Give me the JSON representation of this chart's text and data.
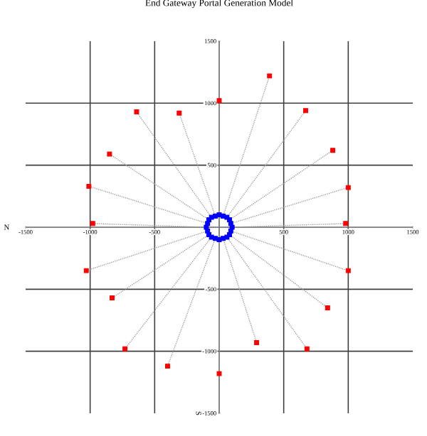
{
  "chart_data": {
    "type": "scatter",
    "title": "End Gateway Portal Generation Model",
    "xlabel": "N",
    "ylabel": "S",
    "xlim": [
      -1500,
      1500
    ],
    "ylim": [
      -1500,
      1500
    ],
    "xticks": [
      -1500,
      -1000,
      -500,
      {
        "value": 0,
        "label": null
      },
      500,
      1000,
      1500
    ],
    "yticks": [
      -1500,
      -1000,
      -500,
      500,
      1000,
      1500
    ],
    "grid": true,
    "series": [
      {
        "type": "line",
        "color": "#999999",
        "line_style": "dotted",
        "marker": "none",
        "x": [
          100,
          980
        ],
        "values": [
          0,
          30
        ]
      },
      {
        "type": "line",
        "color": "#999999",
        "line_style": "dotted",
        "marker": "none",
        "x": [
          90,
          1000
        ],
        "values": [
          30,
          320
        ]
      },
      {
        "type": "line",
        "color": "#999999",
        "line_style": "dotted",
        "marker": "none",
        "x": [
          80,
          880
        ],
        "values": [
          60,
          620
        ]
      },
      {
        "type": "line",
        "color": "#999999",
        "line_style": "dotted",
        "marker": "none",
        "x": [
          60,
          670
        ],
        "values": [
          80,
          940
        ]
      },
      {
        "type": "line",
        "color": "#999999",
        "line_style": "dotted",
        "marker": "none",
        "x": [
          30,
          390
        ],
        "values": [
          90,
          1220
        ]
      },
      {
        "type": "line",
        "color": "#999999",
        "line_style": "dotted",
        "marker": "none",
        "x": [
          0,
          0
        ],
        "values": [
          100,
          1020
        ]
      },
      {
        "type": "line",
        "color": "#999999",
        "line_style": "dotted",
        "marker": "none",
        "x": [
          -30,
          -310
        ],
        "values": [
          90,
          920
        ]
      },
      {
        "type": "line",
        "color": "#999999",
        "line_style": "dotted",
        "marker": "none",
        "x": [
          -60,
          -640
        ],
        "values": [
          80,
          930
        ]
      },
      {
        "type": "line",
        "color": "#999999",
        "line_style": "dotted",
        "marker": "none",
        "x": [
          -80,
          -850
        ],
        "values": [
          60,
          590
        ]
      },
      {
        "type": "line",
        "color": "#999999",
        "line_style": "dotted",
        "marker": "none",
        "x": [
          -90,
          -1010
        ],
        "values": [
          30,
          330
        ]
      },
      {
        "type": "line",
        "color": "#999999",
        "line_style": "dotted",
        "marker": "none",
        "x": [
          -100,
          -980
        ],
        "values": [
          0,
          30
        ]
      },
      {
        "type": "line",
        "color": "#999999",
        "line_style": "dotted",
        "marker": "none",
        "x": [
          -90,
          -1030
        ],
        "values": [
          -30,
          -350
        ]
      },
      {
        "type": "line",
        "color": "#999999",
        "line_style": "dotted",
        "marker": "none",
        "x": [
          -80,
          -830
        ],
        "values": [
          -60,
          -570
        ]
      },
      {
        "type": "line",
        "color": "#999999",
        "line_style": "dotted",
        "marker": "none",
        "x": [
          -60,
          -730
        ],
        "values": [
          -80,
          -980
        ]
      },
      {
        "type": "line",
        "color": "#999999",
        "line_style": "dotted",
        "marker": "none",
        "x": [
          -30,
          -400
        ],
        "values": [
          -90,
          -1120
        ]
      },
      {
        "type": "line",
        "color": "#999999",
        "line_style": "dotted",
        "marker": "none",
        "x": [
          0,
          0
        ],
        "values": [
          -100,
          -1180
        ]
      },
      {
        "type": "line",
        "color": "#999999",
        "line_style": "dotted",
        "marker": "none",
        "x": [
          30,
          290
        ],
        "values": [
          -90,
          -930
        ]
      },
      {
        "type": "line",
        "color": "#999999",
        "line_style": "dotted",
        "marker": "none",
        "x": [
          60,
          680
        ],
        "values": [
          -80,
          -980
        ]
      },
      {
        "type": "line",
        "color": "#999999",
        "line_style": "dotted",
        "marker": "none",
        "x": [
          80,
          840
        ],
        "values": [
          -60,
          -650
        ]
      },
      {
        "type": "line",
        "color": "#999999",
        "line_style": "dotted",
        "marker": "none",
        "x": [
          90,
          1000
        ],
        "values": [
          -30,
          -350
        ]
      },
      {
        "type": "scatter",
        "color": "#0000ff",
        "marker": "square",
        "x": [
          100,
          90,
          80,
          60,
          30,
          0,
          -30,
          -60,
          -80,
          -90,
          -100,
          -90,
          -80,
          -60,
          -30,
          0,
          30,
          60,
          80,
          90
        ],
        "values": [
          0,
          30,
          60,
          80,
          90,
          100,
          90,
          80,
          60,
          30,
          0,
          -30,
          -60,
          -80,
          -90,
          -100,
          -90,
          -80,
          -60,
          -30
        ]
      },
      {
        "type": "scatter",
        "color": "#ff0000",
        "marker": "square",
        "x": [
          980,
          1000,
          880,
          670,
          390,
          0,
          -310,
          -640,
          -850,
          -1010,
          -980,
          -1030,
          -830,
          -730,
          -400,
          0,
          290,
          680,
          840,
          1000
        ],
        "values": [
          30,
          320,
          620,
          940,
          1220,
          1020,
          920,
          930,
          590,
          330,
          30,
          -350,
          -570,
          -980,
          -1120,
          -1180,
          -930,
          -980,
          -650,
          -350
        ]
      }
    ]
  }
}
